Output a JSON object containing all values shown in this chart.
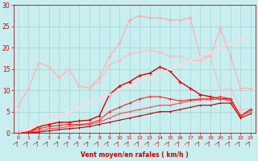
{
  "background_color": "#c8eef0",
  "grid_color": "#a0cccc",
  "xlabel": "Vent moyen/en rafales ( km/h )",
  "xlabel_color": "#cc0000",
  "tick_color": "#cc0000",
  "xlim": [
    -0.5,
    23.5
  ],
  "ylim": [
    0,
    30
  ],
  "yticks": [
    0,
    5,
    10,
    15,
    20,
    25,
    30
  ],
  "xticks": [
    0,
    1,
    2,
    3,
    4,
    5,
    6,
    7,
    8,
    9,
    10,
    11,
    12,
    13,
    14,
    15,
    16,
    17,
    18,
    19,
    20,
    21,
    22,
    23
  ],
  "series": [
    {
      "x": [
        0,
        1,
        2,
        3,
        4,
        5,
        6,
        7,
        8,
        9,
        10,
        11,
        12,
        13,
        14,
        15,
        16,
        17,
        18,
        19,
        20,
        21,
        22,
        23
      ],
      "y": [
        6.5,
        10.5,
        16.5,
        15.5,
        13,
        15,
        11,
        10.5,
        13,
        18,
        21,
        26.5,
        27.5,
        27,
        27,
        26.5,
        26.5,
        27,
        18,
        18,
        24.5,
        18,
        10.5,
        10.5
      ],
      "color": "#ffaaaa",
      "lw": 0.8,
      "marker": "D",
      "ms": 1.8,
      "mew": 0.3
    },
    {
      "x": [
        0,
        1,
        2,
        3,
        4,
        5,
        6,
        7,
        8,
        9,
        10,
        11,
        12,
        13,
        14,
        15,
        16,
        17,
        18,
        19,
        20,
        21,
        22,
        23
      ],
      "y": [
        6.5,
        10.5,
        16.5,
        15.5,
        13,
        15,
        11,
        10.5,
        12,
        16,
        17,
        18.5,
        19,
        19.5,
        19,
        18,
        18,
        17,
        17,
        18,
        10,
        10.5,
        5.5,
        5.5
      ],
      "color": "#ffbbbb",
      "lw": 0.8,
      "marker": "D",
      "ms": 1.8,
      "mew": 0.3
    },
    {
      "x": [
        0,
        1,
        2,
        3,
        4,
        5,
        6,
        7,
        8,
        9,
        10,
        11,
        12,
        13,
        14,
        15,
        16,
        17,
        18,
        19,
        20,
        21,
        22,
        23
      ],
      "y": [
        0,
        1,
        2,
        3,
        4,
        5,
        6,
        7,
        8,
        9,
        10,
        11,
        12,
        13,
        14,
        15,
        16,
        17,
        18,
        19,
        20,
        21,
        22,
        23
      ],
      "color": "#ffcccc",
      "lw": 0.8,
      "marker": null,
      "ms": 0,
      "mew": 0
    },
    {
      "x": [
        0,
        1,
        2,
        3,
        4,
        5,
        6,
        7,
        8,
        9,
        10,
        11,
        12,
        13,
        14,
        15,
        16,
        17,
        18,
        19,
        20,
        21,
        22,
        23
      ],
      "y": [
        0,
        0.2,
        1.5,
        2,
        2.5,
        2.5,
        2.8,
        3,
        4,
        9,
        11,
        12,
        13.5,
        14,
        15.5,
        14.5,
        12,
        10.5,
        9,
        8.5,
        8,
        8,
        4,
        5.5
      ],
      "color": "#dd0000",
      "lw": 1.0,
      "marker": "+",
      "ms": 3.0,
      "mew": 0.8
    },
    {
      "x": [
        0,
        1,
        2,
        3,
        4,
        5,
        6,
        7,
        8,
        9,
        10,
        11,
        12,
        13,
        14,
        15,
        16,
        17,
        18,
        19,
        20,
        21,
        22,
        23
      ],
      "y": [
        0,
        0.2,
        1,
        1.5,
        1.8,
        2,
        2,
        2.2,
        3,
        5,
        6,
        7,
        8,
        8.5,
        8.5,
        8,
        7.5,
        7.8,
        8,
        8,
        8.5,
        8,
        4,
        5.5
      ],
      "color": "#ff2222",
      "lw": 0.8,
      "marker": "+",
      "ms": 2.5,
      "mew": 0.6
    },
    {
      "x": [
        0,
        1,
        2,
        3,
        4,
        5,
        6,
        7,
        8,
        9,
        10,
        11,
        12,
        13,
        14,
        15,
        16,
        17,
        18,
        19,
        20,
        21,
        22,
        23
      ],
      "y": [
        0,
        0.1,
        0.5,
        1,
        1.2,
        1.5,
        1.8,
        2,
        2.5,
        3.5,
        4.5,
        5,
        5.5,
        6,
        6.5,
        6.5,
        7,
        7.5,
        7.8,
        7.8,
        8,
        7.5,
        4,
        5
      ],
      "color": "#ff4444",
      "lw": 0.8,
      "marker": "+",
      "ms": 2.0,
      "mew": 0.5
    },
    {
      "x": [
        0,
        1,
        2,
        3,
        4,
        5,
        6,
        7,
        8,
        9,
        10,
        11,
        12,
        13,
        14,
        15,
        16,
        17,
        18,
        19,
        20,
        21,
        22,
        23
      ],
      "y": [
        0,
        0,
        0.2,
        0.5,
        0.8,
        1,
        1.2,
        1.5,
        2,
        2.5,
        3,
        3.5,
        4,
        4.5,
        5,
        5,
        5.5,
        6,
        6.5,
        6.5,
        7,
        7,
        3.5,
        4.5
      ],
      "color": "#aa0000",
      "lw": 0.8,
      "marker": "+",
      "ms": 2.0,
      "mew": 0.5
    },
    {
      "x": [
        0,
        1,
        2,
        3,
        4,
        5,
        6,
        7,
        8,
        9,
        10,
        11,
        12,
        13,
        14,
        15,
        16,
        17,
        18,
        19,
        20,
        21,
        22,
        23
      ],
      "y": [
        0,
        1,
        2,
        3,
        4,
        5,
        6,
        7,
        8,
        9,
        10,
        11,
        12,
        13,
        14,
        15,
        16,
        17,
        18,
        19,
        20,
        21,
        22,
        23
      ],
      "color": "#ffdddd",
      "lw": 0.8,
      "marker": "D",
      "ms": 1.5,
      "mew": 0.3
    }
  ],
  "figsize": [
    3.2,
    2.0
  ],
  "dpi": 100
}
